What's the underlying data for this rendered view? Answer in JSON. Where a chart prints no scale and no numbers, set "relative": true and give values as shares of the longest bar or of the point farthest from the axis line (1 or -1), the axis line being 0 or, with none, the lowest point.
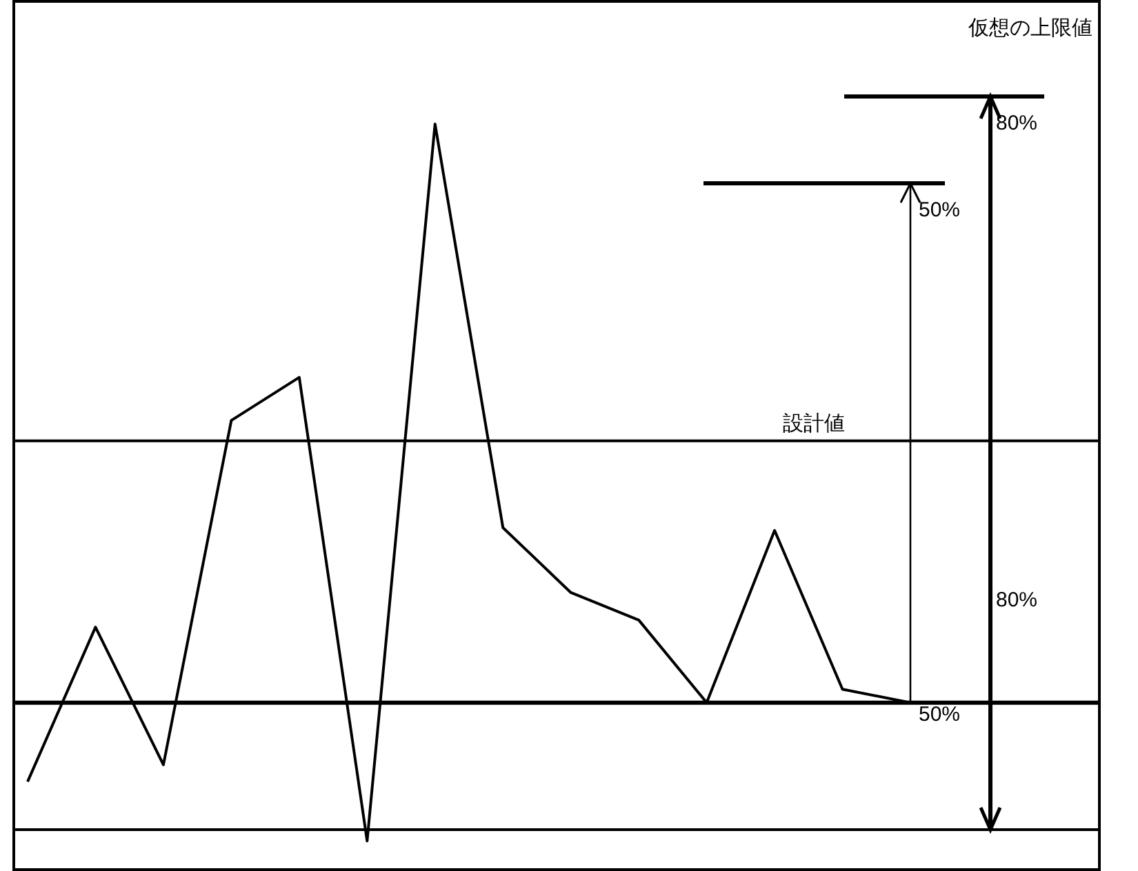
{
  "chart_data": {
    "type": "line",
    "relative": true,
    "line_style": "solid",
    "categories": [
      null,
      null,
      null,
      null,
      null,
      null,
      null,
      null,
      null,
      null,
      null,
      null,
      null,
      null
    ],
    "series": [
      {
        "color": "#000000",
        "values": [
          0.068,
          0.287,
          0.092,
          0.58,
          0.641,
          -0.016,
          1,
          0.428,
          0.336,
          0.297,
          0.18,
          0.424,
          0.199,
          0.18
        ]
      }
    ],
    "ref_lines": [
      {
        "axis": "y",
        "value": 0.551,
        "label": "設計値",
        "color": "#000000"
      },
      {
        "axis": "y",
        "value": 0.18,
        "color": "#000000"
      },
      {
        "axis": "y",
        "value": 0.916,
        "color": "#000000"
      },
      {
        "axis": "y",
        "value": 1.039,
        "label": "仮想の上限値",
        "color": "#000000"
      }
    ],
    "annotations": [
      "80%",
      "50%",
      "80%",
      "50%"
    ]
  }
}
